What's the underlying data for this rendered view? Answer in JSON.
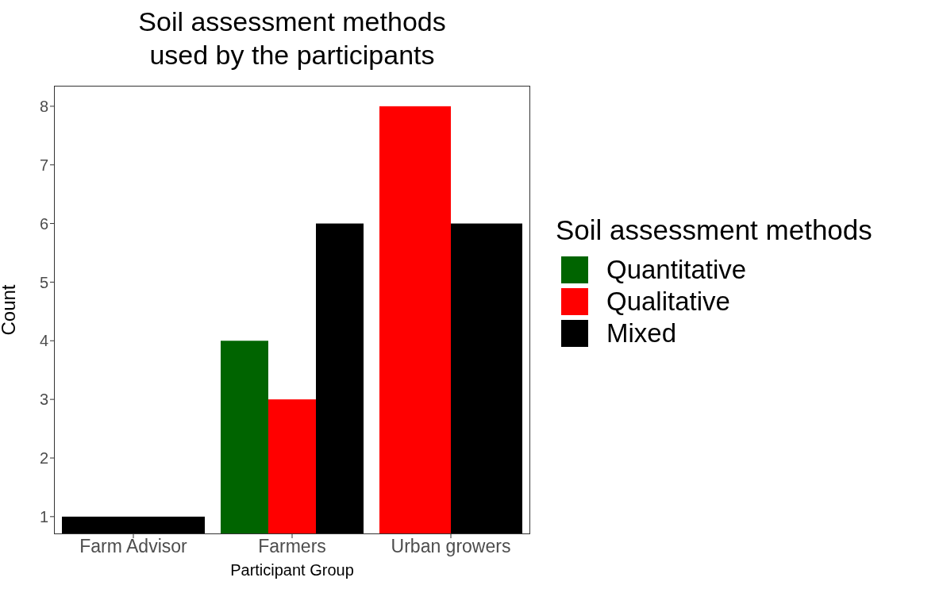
{
  "chart_data": {
    "type": "bar",
    "title": "Soil assessment methods\nused by the participants",
    "xlabel": "Participant Group",
    "ylabel": "Count",
    "legend_title": "Soil assessment methods",
    "categories": [
      "Farm Advisor",
      "Farmers",
      "Urban growers"
    ],
    "series": [
      {
        "name": "Quantitative",
        "color": "#006400",
        "values": [
          null,
          4,
          null
        ]
      },
      {
        "name": "Qualitative",
        "color": "#ff0000",
        "values": [
          null,
          3,
          8
        ]
      },
      {
        "name": "Mixed",
        "color": "#000000",
        "values": [
          1,
          6,
          6
        ]
      }
    ],
    "ylim": [
      0.7,
      8.35
    ],
    "yticks": [
      1,
      2,
      3,
      4,
      5,
      6,
      7,
      8
    ],
    "grid": false,
    "legend": "right"
  }
}
